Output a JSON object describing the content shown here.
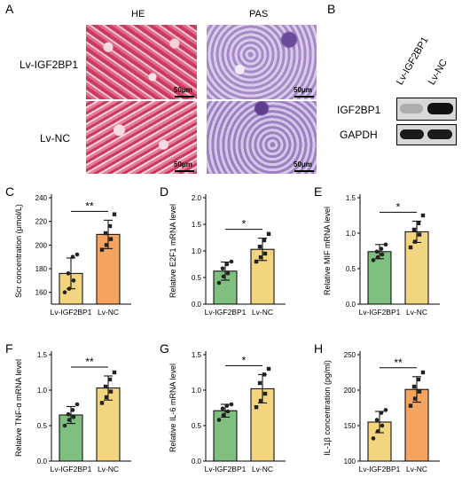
{
  "panels": {
    "A": {
      "letter": "A",
      "columns": [
        "HE",
        "PAS"
      ],
      "rows": [
        "Lv-IGF2BP1",
        "Lv-NC"
      ],
      "scalebar": "50μm"
    },
    "B": {
      "letter": "B",
      "lanes": [
        "Lv-IGF2BP1",
        "Lv-NC"
      ],
      "proteins": [
        "IGF2BP1",
        "GAPDH"
      ],
      "intensity": {
        "IGF2BP1": [
          0.25,
          0.95
        ],
        "GAPDH": [
          0.9,
          0.9
        ]
      }
    }
  },
  "chart_data": [
    {
      "letter": "C",
      "type": "bar",
      "categories": [
        "Lv-IGF2BP1",
        "Lv-NC"
      ],
      "values": [
        176,
        209
      ],
      "errors": [
        13,
        12
      ],
      "points": [
        [
          160,
          163,
          170,
          176,
          190,
          192
        ],
        [
          196,
          200,
          205,
          210,
          216,
          226
        ]
      ],
      "colors": [
        "#f2d57e",
        "#f4a45f"
      ],
      "ylabel": "Scr concentration (μmol/L)",
      "ylim": [
        150,
        240
      ],
      "yticks": [
        160,
        180,
        200,
        220,
        240
      ],
      "significance": "**"
    },
    {
      "letter": "D",
      "type": "bar",
      "categories": [
        "Lv-IGF2BP1",
        "Lv-NC"
      ],
      "values": [
        0.62,
        1.03
      ],
      "errors": [
        0.17,
        0.21
      ],
      "points": [
        [
          0.4,
          0.52,
          0.58,
          0.67,
          0.75,
          0.8
        ],
        [
          0.8,
          0.88,
          0.95,
          1.08,
          1.2,
          1.32
        ]
      ],
      "colors": [
        "#7fbf7f",
        "#f2d57e"
      ],
      "ylabel": "Relative E2F1 mRNA level",
      "ylim": [
        0,
        2.0
      ],
      "yticks": [
        0.0,
        0.5,
        1.0,
        1.5,
        2.0
      ],
      "significance": "*"
    },
    {
      "letter": "E",
      "type": "bar",
      "categories": [
        "Lv-IGF2BP1",
        "Lv-NC"
      ],
      "values": [
        0.74,
        1.02
      ],
      "errors": [
        0.1,
        0.15
      ],
      "points": [
        [
          0.62,
          0.66,
          0.7,
          0.74,
          0.78,
          0.84
        ],
        [
          0.8,
          0.88,
          0.98,
          1.05,
          1.14,
          1.25
        ]
      ],
      "colors": [
        "#7fbf7f",
        "#f2d57e"
      ],
      "ylabel": "Relative MIF mRNA level",
      "ylim": [
        0,
        1.5
      ],
      "yticks": [
        0.0,
        0.5,
        1.0,
        1.5
      ],
      "significance": "*"
    },
    {
      "letter": "F",
      "type": "bar",
      "categories": [
        "Lv-IGF2BP1",
        "Lv-NC"
      ],
      "values": [
        0.65,
        1.03
      ],
      "errors": [
        0.12,
        0.17
      ],
      "points": [
        [
          0.5,
          0.58,
          0.62,
          0.66,
          0.72,
          0.8
        ],
        [
          0.82,
          0.9,
          0.98,
          1.05,
          1.15,
          1.25
        ]
      ],
      "colors": [
        "#7fbf7f",
        "#f2d57e"
      ],
      "ylabel": "Relative TNF-α mRNA level",
      "ylim": [
        0,
        1.5
      ],
      "yticks": [
        0.0,
        0.5,
        1.0,
        1.5
      ],
      "significance": "**"
    },
    {
      "letter": "G",
      "type": "bar",
      "categories": [
        "Lv-IGF2BP1",
        "Lv-NC"
      ],
      "values": [
        0.71,
        1.02
      ],
      "errors": [
        0.09,
        0.2
      ],
      "points": [
        [
          0.58,
          0.65,
          0.7,
          0.74,
          0.78,
          0.8
        ],
        [
          0.76,
          0.85,
          0.95,
          1.1,
          1.22,
          1.3
        ]
      ],
      "colors": [
        "#7fbf7f",
        "#f2d57e"
      ],
      "ylabel": "Relative IL-6 mRNA level",
      "ylim": [
        0,
        1.5
      ],
      "yticks": [
        0.0,
        0.5,
        1.0,
        1.5
      ],
      "significance": "*"
    },
    {
      "letter": "H",
      "type": "bar",
      "categories": [
        "Lv-IGF2BP1",
        "Lv-NC"
      ],
      "values": [
        155,
        201
      ],
      "errors": [
        15,
        18
      ],
      "points": [
        [
          132,
          142,
          150,
          158,
          168,
          172
        ],
        [
          178,
          188,
          198,
          205,
          215,
          225
        ]
      ],
      "colors": [
        "#f2d57e",
        "#f4a45f"
      ],
      "ylabel": "IL-1β concentration (pg/ml)",
      "ylim": [
        100,
        250
      ],
      "yticks": [
        100,
        150,
        200,
        250
      ],
      "significance": "**"
    }
  ]
}
